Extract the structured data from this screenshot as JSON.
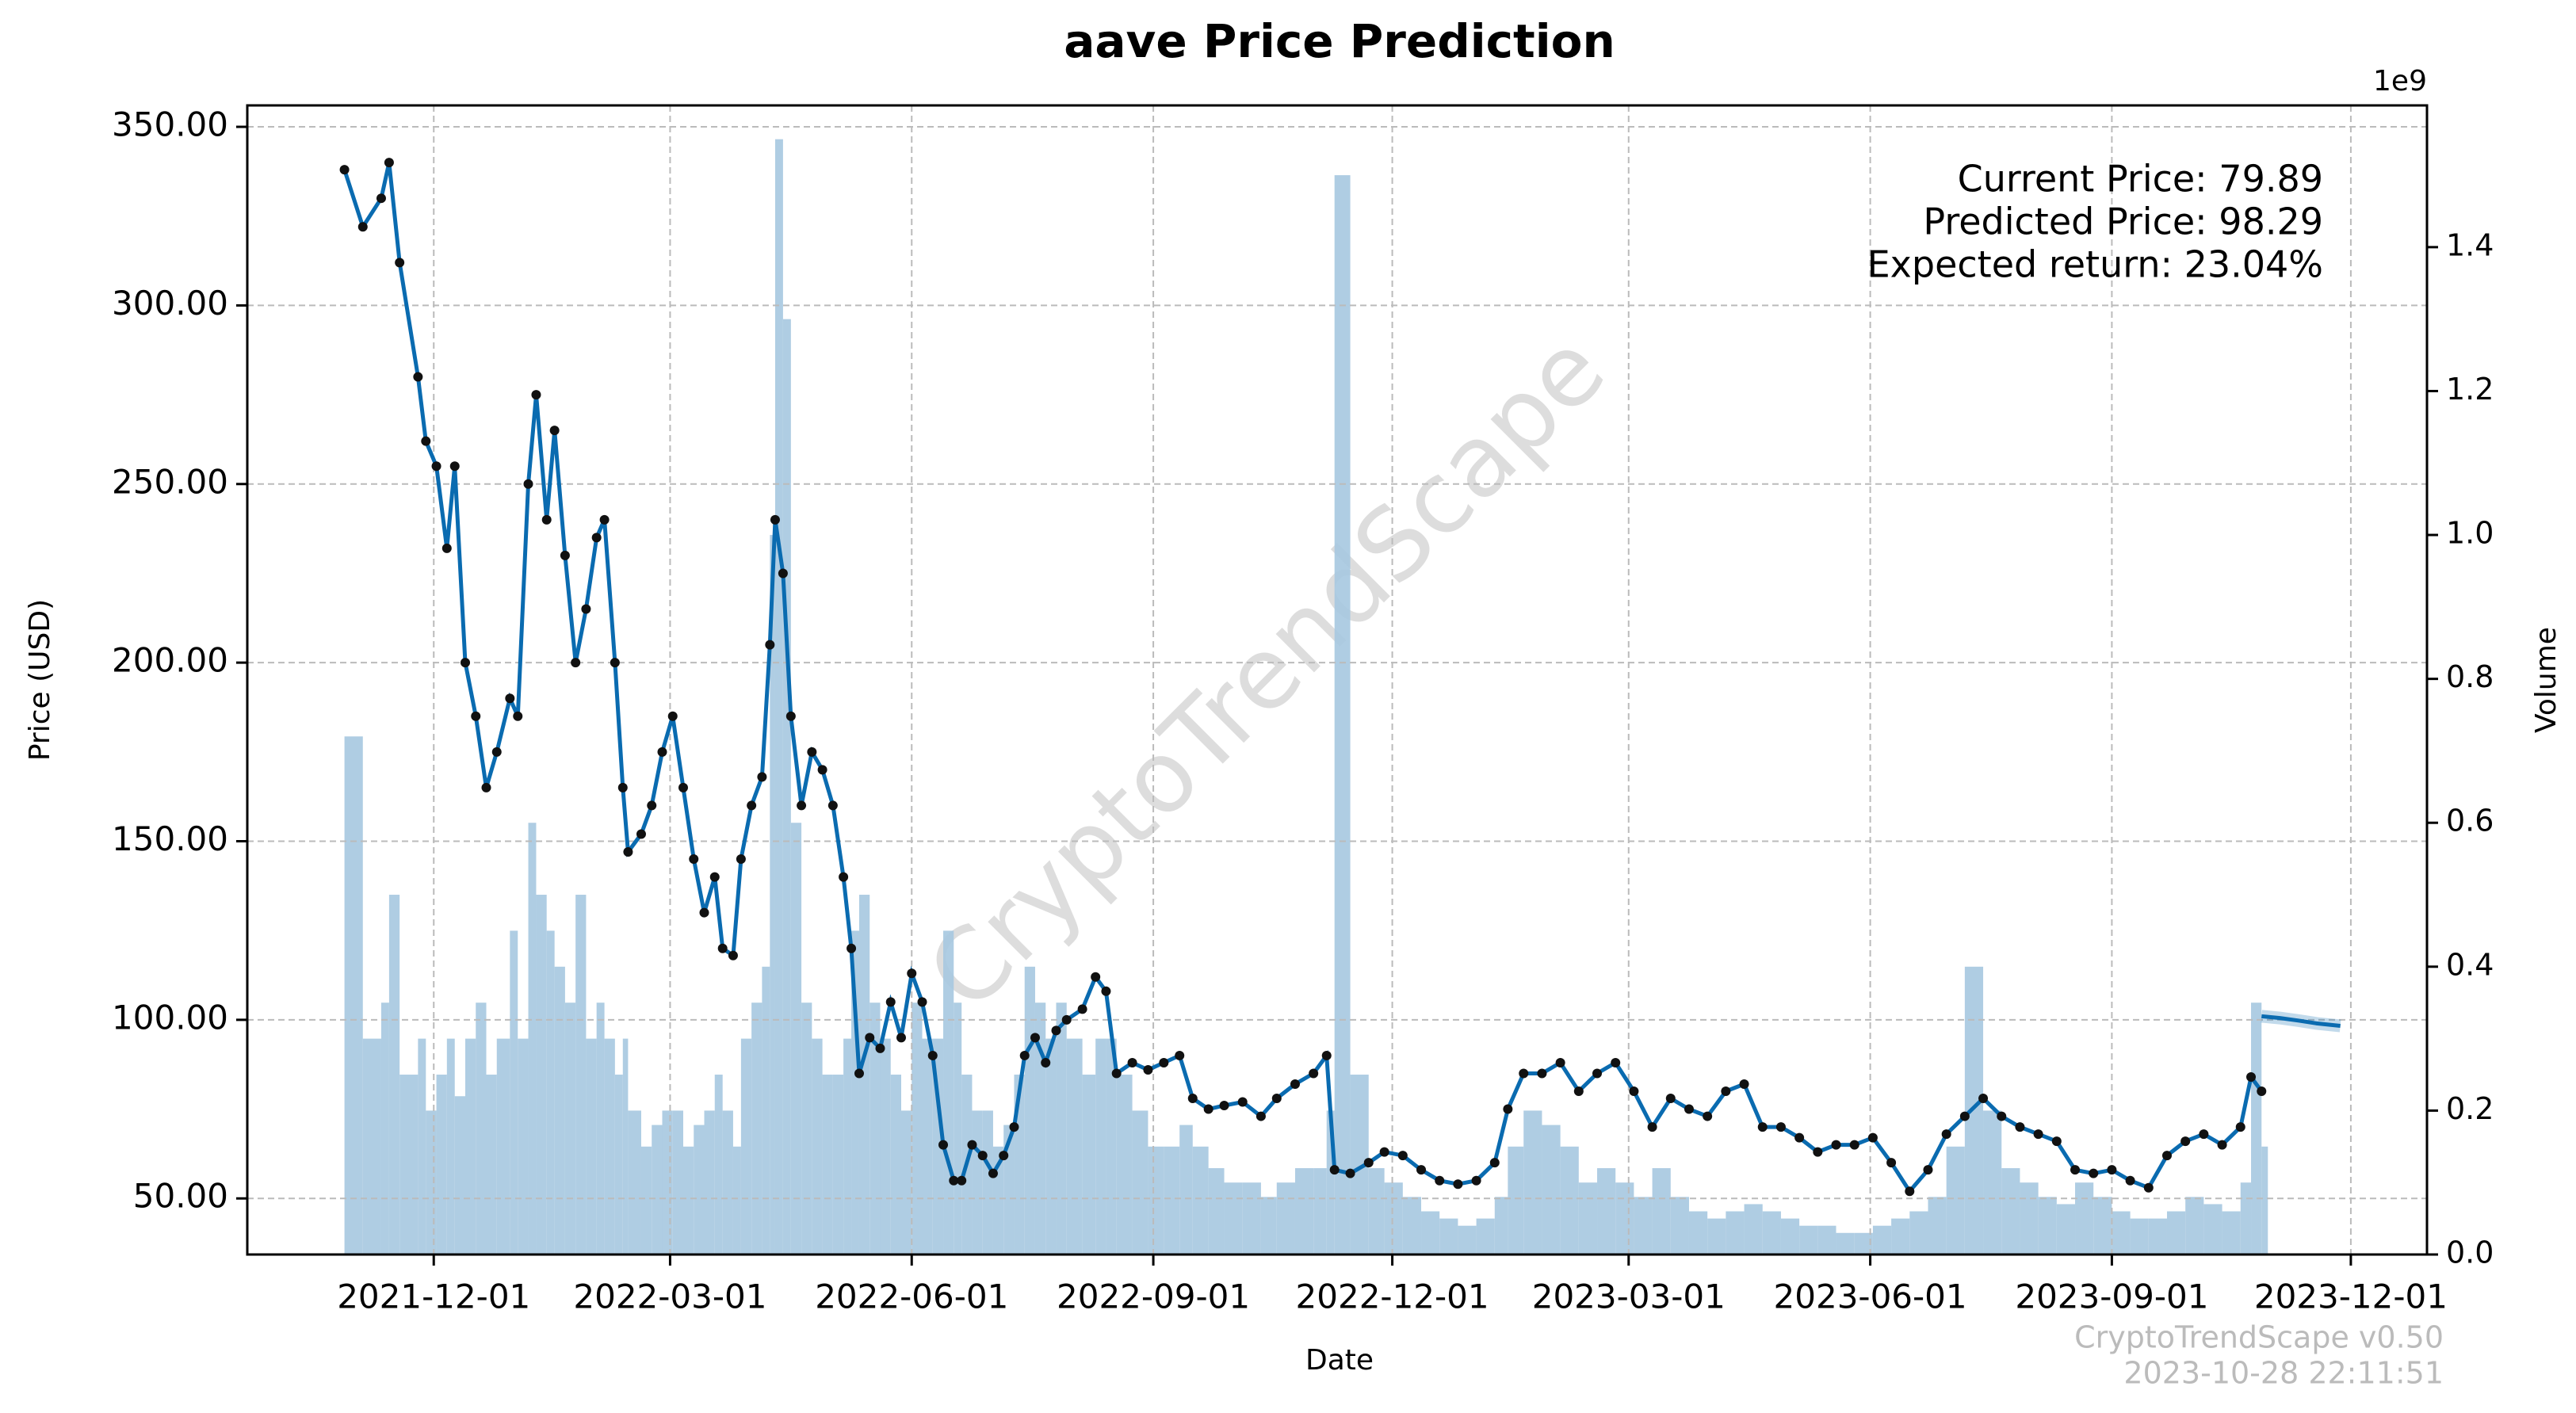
{
  "chart_data": {
    "type": "line",
    "title": "aave Price Prediction",
    "xlabel": "Date",
    "ylabel": "Price (USD)",
    "y2label": "Volume",
    "y2_offset_label": "1e9",
    "annotations": [
      "Current Price: 79.89",
      "Predicted Price: 98.29",
      "Expected return: 23.04%"
    ],
    "watermark": "CryptoTrendScape",
    "footer": [
      "CryptoTrendScape v0.50",
      "2023-10-28 22:11:51"
    ],
    "grid": true,
    "xlim": [
      "2021-09-21",
      "2023-12-30"
    ],
    "xticks": [
      "2021-12-01",
      "2022-03-01",
      "2022-06-01",
      "2022-09-01",
      "2022-12-01",
      "2023-03-01",
      "2023-06-01",
      "2023-09-01",
      "2023-12-01"
    ],
    "ylim": [
      34.3,
      356
    ],
    "yticks": [
      {
        "value": 50,
        "label": "50.00"
      },
      {
        "value": 100,
        "label": "100.00"
      },
      {
        "value": 150,
        "label": "150.00"
      },
      {
        "value": 200,
        "label": "200.00"
      },
      {
        "value": 250,
        "label": "250.00"
      },
      {
        "value": 300,
        "label": "300.00"
      },
      {
        "value": 350,
        "label": "350.00"
      }
    ],
    "y2lim": [
      0,
      1.597
    ],
    "y2ticks": [
      {
        "value": 0,
        "label": "0.0"
      },
      {
        "value": 0.2,
        "label": "0.2"
      },
      {
        "value": 0.4,
        "label": "0.4"
      },
      {
        "value": 0.6,
        "label": "0.6"
      },
      {
        "value": 0.8,
        "label": "0.8"
      },
      {
        "value": 1.0,
        "label": "1.0"
      },
      {
        "value": 1.2,
        "label": "1.2"
      },
      {
        "value": 1.4,
        "label": "1.4"
      }
    ],
    "x": [
      "2021-10-28",
      "2021-11-04",
      "2021-11-11",
      "2021-11-14",
      "2021-11-18",
      "2021-11-25",
      "2021-11-28",
      "2021-12-02",
      "2021-12-06",
      "2021-12-09",
      "2021-12-13",
      "2021-12-17",
      "2021-12-21",
      "2021-12-25",
      "2021-12-30",
      "2022-01-02",
      "2022-01-06",
      "2022-01-09",
      "2022-01-13",
      "2022-01-16",
      "2022-01-20",
      "2022-01-24",
      "2022-01-28",
      "2022-02-01",
      "2022-02-04",
      "2022-02-08",
      "2022-02-11",
      "2022-02-13",
      "2022-02-18",
      "2022-02-22",
      "2022-02-26",
      "2022-03-02",
      "2022-03-06",
      "2022-03-10",
      "2022-03-14",
      "2022-03-18",
      "2022-03-21",
      "2022-03-25",
      "2022-03-28",
      "2022-04-01",
      "2022-04-05",
      "2022-04-08",
      "2022-04-10",
      "2022-04-13",
      "2022-04-16",
      "2022-04-20",
      "2022-04-24",
      "2022-04-28",
      "2022-05-02",
      "2022-05-06",
      "2022-05-09",
      "2022-05-12",
      "2022-05-16",
      "2022-05-20",
      "2022-05-24",
      "2022-05-28",
      "2022-06-01",
      "2022-06-05",
      "2022-06-09",
      "2022-06-13",
      "2022-06-17",
      "2022-06-20",
      "2022-06-24",
      "2022-06-28",
      "2022-07-02",
      "2022-07-06",
      "2022-07-10",
      "2022-07-14",
      "2022-07-18",
      "2022-07-22",
      "2022-07-26",
      "2022-07-30",
      "2022-08-05",
      "2022-08-10",
      "2022-08-14",
      "2022-08-18",
      "2022-08-24",
      "2022-08-30",
      "2022-09-05",
      "2022-09-11",
      "2022-09-16",
      "2022-09-22",
      "2022-09-28",
      "2022-10-05",
      "2022-10-12",
      "2022-10-18",
      "2022-10-25",
      "2022-11-01",
      "2022-11-06",
      "2022-11-09",
      "2022-11-15",
      "2022-11-22",
      "2022-11-28",
      "2022-12-05",
      "2022-12-12",
      "2022-12-19",
      "2022-12-26",
      "2023-01-02",
      "2023-01-09",
      "2023-01-14",
      "2023-01-20",
      "2023-01-27",
      "2023-02-03",
      "2023-02-10",
      "2023-02-17",
      "2023-02-24",
      "2023-03-03",
      "2023-03-10",
      "2023-03-17",
      "2023-03-24",
      "2023-03-31",
      "2023-04-07",
      "2023-04-14",
      "2023-04-21",
      "2023-04-28",
      "2023-05-05",
      "2023-05-12",
      "2023-05-19",
      "2023-05-26",
      "2023-06-02",
      "2023-06-09",
      "2023-06-16",
      "2023-06-23",
      "2023-06-30",
      "2023-07-07",
      "2023-07-14",
      "2023-07-21",
      "2023-07-28",
      "2023-08-04",
      "2023-08-11",
      "2023-08-18",
      "2023-08-25",
      "2023-09-01",
      "2023-09-08",
      "2023-09-15",
      "2023-09-22",
      "2023-09-29",
      "2023-10-06",
      "2023-10-13",
      "2023-10-20",
      "2023-10-24",
      "2023-10-28"
    ],
    "series": [
      {
        "color": "#0a6bb0",
        "values": [
          338,
          322,
          330,
          340,
          312,
          280,
          262,
          255,
          232,
          255,
          200,
          185,
          165,
          175,
          190,
          185,
          250,
          275,
          240,
          265,
          230,
          200,
          215,
          235,
          240,
          200,
          165,
          147,
          152,
          160,
          175,
          185,
          165,
          145,
          130,
          140,
          120,
          118,
          145,
          160,
          168,
          205,
          240,
          225,
          185,
          160,
          175,
          170,
          160,
          140,
          120,
          85,
          95,
          92,
          105,
          95,
          113,
          105,
          90,
          65,
          55,
          55,
          65,
          62,
          57,
          62,
          70,
          90,
          95,
          88,
          97,
          100,
          103,
          112,
          108,
          85,
          88,
          86,
          88,
          90,
          78,
          75,
          76,
          77,
          73,
          78,
          82,
          85,
          90,
          58,
          57,
          60,
          63,
          62,
          58,
          55,
          54,
          55,
          60,
          75,
          85,
          85,
          88,
          80,
          85,
          88,
          80,
          70,
          78,
          75,
          73,
          80,
          82,
          70,
          70,
          67,
          63,
          65,
          65,
          67,
          60,
          52,
          58,
          68,
          73,
          78,
          73,
          70,
          68,
          66,
          58,
          57,
          58,
          55,
          53,
          62,
          66,
          68,
          65,
          70,
          84,
          80
        ]
      },
      {
        "color": "#a6c8e0",
        "axis": "y2",
        "values": [
          0.72,
          0.3,
          0.35,
          0.5,
          0.25,
          0.3,
          0.2,
          0.25,
          0.3,
          0.22,
          0.3,
          0.35,
          0.25,
          0.3,
          0.45,
          0.3,
          0.6,
          0.5,
          0.45,
          0.4,
          0.35,
          0.5,
          0.3,
          0.35,
          0.3,
          0.25,
          0.3,
          0.2,
          0.15,
          0.18,
          0.2,
          0.2,
          0.15,
          0.18,
          0.2,
          0.25,
          0.2,
          0.15,
          0.3,
          0.35,
          0.4,
          1.0,
          1.55,
          1.3,
          0.6,
          0.35,
          0.3,
          0.25,
          0.25,
          0.3,
          0.45,
          0.5,
          0.35,
          0.3,
          0.25,
          0.2,
          0.35,
          0.3,
          0.3,
          0.45,
          0.35,
          0.25,
          0.2,
          0.2,
          0.15,
          0.18,
          0.25,
          0.4,
          0.35,
          0.3,
          0.35,
          0.3,
          0.25,
          0.3,
          0.3,
          0.25,
          0.2,
          0.15,
          0.15,
          0.18,
          0.15,
          0.12,
          0.1,
          0.1,
          0.08,
          0.1,
          0.12,
          0.12,
          0.2,
          1.5,
          0.25,
          0.12,
          0.1,
          0.08,
          0.06,
          0.05,
          0.04,
          0.05,
          0.08,
          0.15,
          0.2,
          0.18,
          0.15,
          0.1,
          0.12,
          0.1,
          0.08,
          0.12,
          0.08,
          0.06,
          0.05,
          0.06,
          0.07,
          0.06,
          0.05,
          0.04,
          0.04,
          0.03,
          0.03,
          0.04,
          0.05,
          0.06,
          0.08,
          0.15,
          0.4,
          0.2,
          0.12,
          0.1,
          0.08,
          0.07,
          0.1,
          0.08,
          0.06,
          0.05,
          0.05,
          0.06,
          0.08,
          0.07,
          0.06,
          0.1,
          0.35,
          0.15
        ]
      }
    ],
    "prediction": {
      "color": "#0a6bb0",
      "x": [
        "2023-10-28",
        "2023-11-04",
        "2023-11-11",
        "2023-11-18",
        "2023-11-27"
      ],
      "values": [
        101,
        100.5,
        99.8,
        99,
        98.3
      ]
    }
  }
}
